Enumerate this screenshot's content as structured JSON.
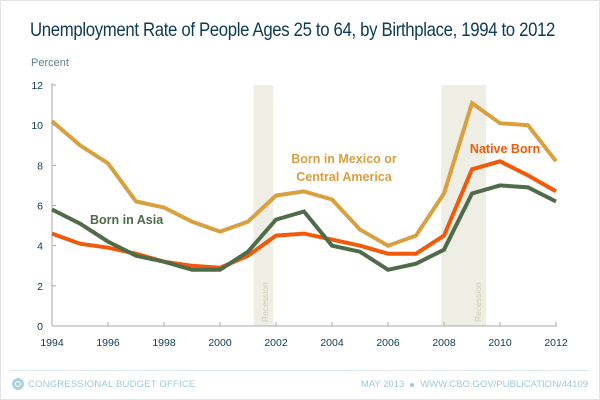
{
  "chart_data": {
    "type": "line",
    "title": "Unemployment Rate of People Ages 25 to 64, by Birthplace, 1994 to 2012",
    "ylabel": "Percent",
    "xlabel": "",
    "x": [
      1994,
      1995,
      1996,
      1997,
      1998,
      1999,
      2000,
      2001,
      2002,
      2003,
      2004,
      2005,
      2006,
      2007,
      2008,
      2009,
      2010,
      2011,
      2012
    ],
    "xlim": [
      1994,
      2012
    ],
    "ylim": [
      0,
      12
    ],
    "xticks": [
      "1994",
      "1996",
      "1998",
      "2000",
      "2002",
      "2004",
      "2006",
      "2008",
      "2010",
      "2012"
    ],
    "yticks": [
      "0",
      "2",
      "4",
      "6",
      "8",
      "10",
      "12"
    ],
    "grid": false,
    "series": [
      {
        "name": "Born in Mexico or Central America",
        "label_lines": [
          "Born in Mexico or",
          "Central America"
        ],
        "color": "#d9a03f",
        "values": [
          10.2,
          9.0,
          8.1,
          6.2,
          5.9,
          5.2,
          4.7,
          5.2,
          6.5,
          6.7,
          6.3,
          4.8,
          4.0,
          4.5,
          6.6,
          11.1,
          10.1,
          10.0,
          8.2
        ]
      },
      {
        "name": "Native Born",
        "label_lines": [
          "Native Born"
        ],
        "color": "#f05a0a",
        "values": [
          4.6,
          4.1,
          3.9,
          3.6,
          3.2,
          3.0,
          2.9,
          3.5,
          4.5,
          4.6,
          4.3,
          4.0,
          3.6,
          3.6,
          4.5,
          7.8,
          8.2,
          7.5,
          6.7
        ]
      },
      {
        "name": "Born in Asia",
        "label_lines": [
          "Born in Asia"
        ],
        "color": "#4f6b4a",
        "values": [
          5.8,
          5.1,
          4.2,
          3.5,
          3.2,
          2.8,
          2.8,
          3.7,
          5.3,
          5.7,
          4.0,
          3.7,
          2.8,
          3.1,
          3.8,
          6.6,
          7.0,
          6.9,
          6.2
        ]
      }
    ],
    "shaded_regions": [
      {
        "label": "Recession",
        "start": 2001.2,
        "end": 2001.9
      },
      {
        "label": "Recession",
        "start": 2007.9,
        "end": 2009.5
      }
    ]
  },
  "footer": {
    "org": "CONGRESSIONAL BUDGET OFFICE",
    "date": "MAY 2013",
    "url": "WWW.CBO.GOV/PUBLICATION/44109"
  }
}
